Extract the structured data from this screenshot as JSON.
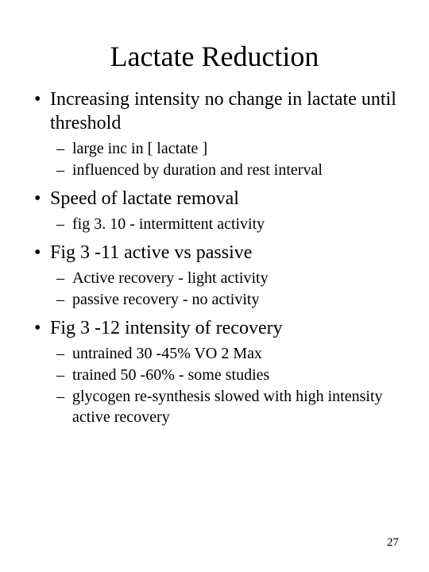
{
  "slide": {
    "title": "Lactate Reduction",
    "page_number": "27",
    "bullets": [
      {
        "text": "Increasing intensity no change in lactate until threshold",
        "sub": [
          "large inc in [ lactate ]",
          "influenced by duration and rest interval"
        ]
      },
      {
        "text": "Speed of lactate removal",
        "sub": [
          "fig 3. 10 - intermittent activity"
        ]
      },
      {
        "text": "Fig 3 -11 active vs passive",
        "sub": [
          "Active recovery - light activity",
          "passive recovery - no activity"
        ]
      },
      {
        "text": "Fig 3 -12 intensity of recovery",
        "sub": [
          "untrained 30 -45% VO 2 Max",
          "trained 50 -60% - some studies",
          "glycogen re-synthesis slowed with high intensity active recovery"
        ]
      }
    ]
  },
  "style": {
    "background_color": "#ffffff",
    "text_color": "#000000",
    "font_family": "Times New Roman",
    "title_fontsize": 36,
    "level1_fontsize": 24,
    "level2_fontsize": 20,
    "page_number_fontsize": 15
  }
}
